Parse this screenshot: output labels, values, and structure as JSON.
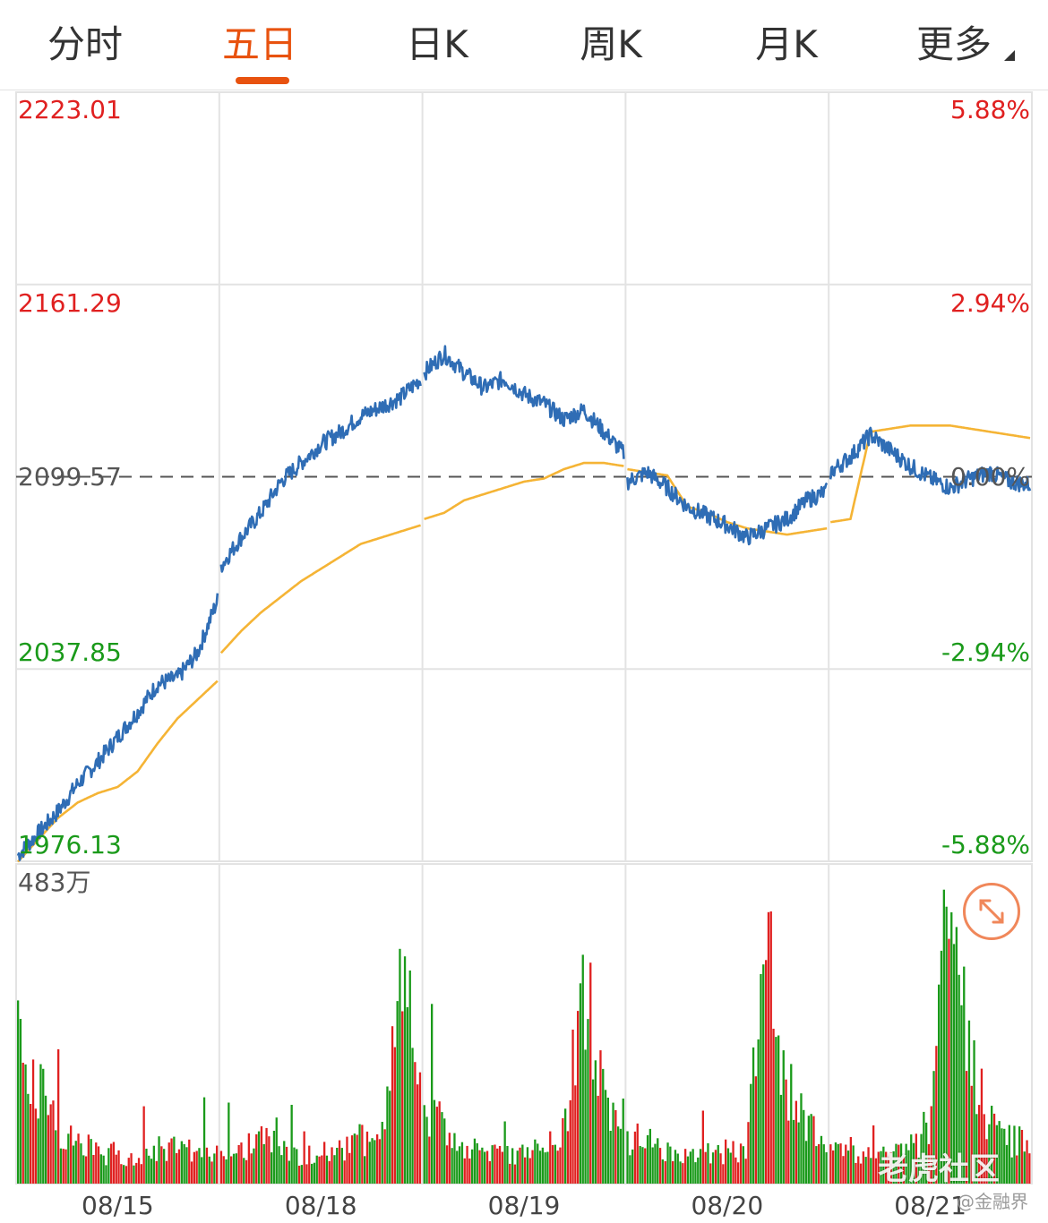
{
  "tabs": [
    {
      "label": "分时",
      "active": false
    },
    {
      "label": "五日",
      "active": true
    },
    {
      "label": "日K",
      "active": false
    },
    {
      "label": "周K",
      "active": false
    },
    {
      "label": "月K",
      "active": false
    },
    {
      "label": "更多",
      "active": false
    }
  ],
  "colors": {
    "accent": "#e8520f",
    "up": "#e02020",
    "down": "#1a9a1a",
    "price_line": "#2f6db5",
    "avg_line": "#f5b435",
    "grid": "#e3e3e3"
  },
  "chart_data": {
    "type": "line",
    "title": "",
    "series": [
      {
        "values": [
          1978,
          1985,
          1992,
          2001,
          2008,
          2016,
          2024,
          2033,
          2035,
          2043,
          2060,
          2071,
          2080,
          2088,
          2098,
          2104,
          2110,
          2114,
          2119,
          2122,
          2125,
          2131,
          2133,
          2139,
          2133,
          2128,
          2131,
          2126,
          2123,
          2118,
          2121,
          2114,
          2107,
          2098,
          2101,
          2096,
          2090,
          2087,
          2084,
          2080,
          2083,
          2086,
          2092,
          2095,
          2101,
          2106,
          2113,
          2108,
          2103,
          2099,
          2096,
          2099,
          2101,
          2098,
          2097
        ]
      },
      {
        "values": [
          1976,
          1983,
          1990,
          1995,
          1998,
          2000,
          2005,
          2014,
          2022,
          2028,
          2034,
          2043,
          2050,
          2056,
          2061,
          2066,
          2070,
          2074,
          2078,
          2080,
          2082,
          2084,
          2086,
          2088,
          2092,
          2094,
          2096,
          2098,
          2099,
          2102,
          2104,
          2104,
          2103,
          2102,
          2101,
          2100,
          2090,
          2088,
          2085,
          2083,
          2082,
          2081,
          2082,
          2083,
          2085,
          2086,
          2114,
          2115,
          2116,
          2116,
          2116,
          2115,
          2114,
          2113,
          2112
        ]
      }
    ],
    "x_labels": [
      "08/15",
      "08/18",
      "08/19",
      "08/20",
      "08/21"
    ],
    "y_left_labels": [
      "2223.01",
      "2161.29",
      "2099.57",
      "2037.85",
      "1976.13"
    ],
    "y_right_labels": [
      "5.88%",
      "2.94%",
      "0.00%",
      "-2.94%",
      "-5.88%"
    ],
    "ylim": [
      1976.13,
      2223.01
    ],
    "reference_value": 2099.57,
    "volume_label": "483万",
    "volume_max": 483,
    "volume_unit": "万",
    "volume_profile": [
      280,
      160,
      90,
      70,
      55,
      45,
      45,
      60,
      55,
      50,
      45,
      50,
      48,
      80,
      55,
      45,
      50,
      55,
      75,
      60,
      310,
      200,
      120,
      90,
      70,
      55,
      50,
      55,
      65,
      80,
      340,
      140,
      100,
      80,
      70,
      55,
      48,
      50,
      55,
      60,
      380,
      180,
      95,
      75,
      60,
      50,
      45,
      48,
      60,
      80,
      483,
      190,
      110,
      70,
      75
    ]
  },
  "watermark": {
    "main": "老虎社区",
    "sub": "@金融界"
  }
}
